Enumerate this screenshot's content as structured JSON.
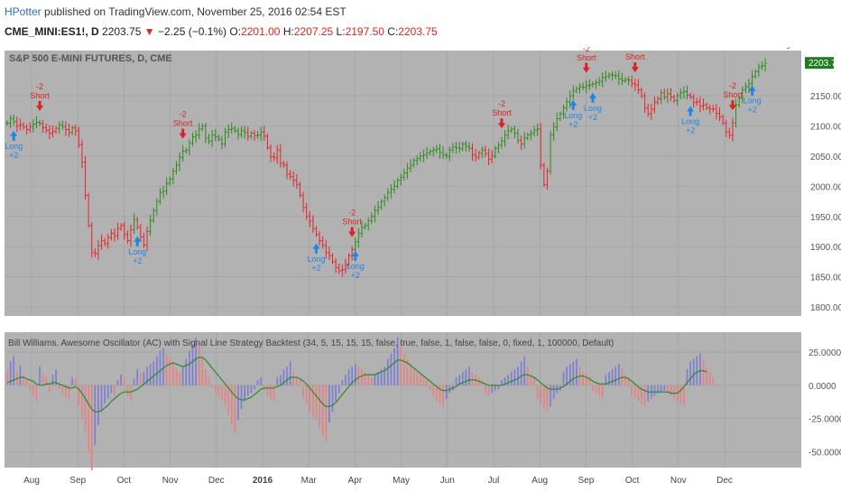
{
  "header": {
    "user": "HPotter",
    "published_text": " published on TradingView.com, November 25, 2016 02:54 EST",
    "symbol": "CME_MINI:ES1!, D",
    "last": "2203.75",
    "down_arrow": "▼",
    "change": "−2.25 (−0.1%)",
    "o_label": "O:",
    "o_value": "2201.00",
    "h_label": "H:",
    "h_value": "2207.25",
    "l_label": "L:",
    "l_value": "2197.50",
    "c_label": "C:",
    "c_value": "2203.75"
  },
  "main_pane": {
    "title": "S&P 500 E-MINI FUTURES, D, CME",
    "price_badge": "2203.75"
  },
  "indicator_pane": {
    "title": "Bill Williams. Awesome Oscillator (AC) with Signal Line Strategy Backtest (34, 5, 15, 15, 15, false, true, false, 1, false, false, 0, fixed, 1, 100000, Default)"
  },
  "colors": {
    "background": "#b2b2b2",
    "grid": "#a3a3a3",
    "bull": "#2b8a1a",
    "bear": "#e8222a",
    "long": "#1f86e8",
    "short": "#e02020",
    "hist_pos": "#e88080",
    "hist_neg": "#7b7bd8",
    "signal": "#2a8a2a",
    "badge": "#227a22"
  },
  "chart_data": [
    {
      "type": "candlestick",
      "title": "S&P 500 E-MINI FUTURES, D, CME",
      "x_tick_labels": [
        "Aug",
        "Sep",
        "Oct",
        "Nov",
        "Dec",
        "2016",
        "Mar",
        "Apr",
        "May",
        "Jun",
        "Jul",
        "Aug",
        "Sep",
        "Oct",
        "Nov",
        "Dec"
      ],
      "y_tick_labels": [
        "2150.00",
        "2100.00",
        "2050.00",
        "2000.00",
        "1950.00",
        "1900.00",
        "1850.00",
        "1800.00"
      ],
      "ylim": [
        1785,
        2225
      ],
      "last_price": 2203.75,
      "grid": true,
      "closes": [
        2105,
        2112,
        2107,
        2100,
        2102,
        2098,
        2094,
        2099,
        2103,
        2106,
        2104,
        2097,
        2093,
        2088,
        2091,
        2096,
        2102,
        2099,
        2094,
        2089,
        2097,
        2092,
        2069,
        2040,
        1985,
        1935,
        1890,
        1888,
        1902,
        1910,
        1905,
        1915,
        1922,
        1918,
        1930,
        1935,
        1920,
        1910,
        1928,
        1945,
        1932,
        1916,
        1903,
        1925,
        1943,
        1960,
        1975,
        1990,
        1992,
        2005,
        2012,
        2025,
        2035,
        2048,
        2058,
        2060,
        2072,
        2082,
        2085,
        2095,
        2100,
        2080,
        2075,
        2085,
        2082,
        2078,
        2070,
        2090,
        2094,
        2096,
        2092,
        2086,
        2092,
        2089,
        2083,
        2088,
        2084,
        2085,
        2090,
        2083,
        2064,
        2049,
        2047,
        2060,
        2038,
        2035,
        2020,
        2016,
        2010,
        2003,
        1985,
        1965,
        1950,
        1942,
        1930,
        1920,
        1910,
        1902,
        1890,
        1885,
        1875,
        1865,
        1860,
        1862,
        1870,
        1885,
        1895,
        1908,
        1922,
        1932,
        1935,
        1943,
        1950,
        1960,
        1965,
        1975,
        1981,
        1990,
        1995,
        2000,
        2010,
        2015,
        2022,
        2030,
        2035,
        2043,
        2046,
        2050,
        2052,
        2055,
        2058,
        2060,
        2062,
        2056,
        2052,
        2050,
        2060,
        2065,
        2064,
        2062,
        2070,
        2066,
        2063,
        2052,
        2048,
        2055,
        2060,
        2054,
        2045,
        2050,
        2063,
        2068,
        2075,
        2085,
        2092,
        2095,
        2088,
        2076,
        2070,
        2080,
        2085,
        2088,
        2093,
        2095,
        2035,
        2003,
        2025,
        2085,
        2098,
        2112,
        2120,
        2130,
        2140,
        2150,
        2158,
        2162,
        2165,
        2164,
        2167,
        2168,
        2170,
        2172,
        2174,
        2180,
        2182,
        2185,
        2184,
        2183,
        2178,
        2175,
        2177,
        2176,
        2170,
        2168,
        2160,
        2150,
        2130,
        2120,
        2128,
        2139,
        2145,
        2155,
        2148,
        2153,
        2148,
        2142,
        2150,
        2155,
        2157,
        2151,
        2148,
        2139,
        2140,
        2133,
        2135,
        2130,
        2128,
        2128,
        2121,
        2115,
        2105,
        2090,
        2085,
        2105,
        2135,
        2146,
        2160,
        2165,
        2170,
        2182,
        2190,
        2198,
        2200,
        2203.75
      ],
      "signals": [
        {
          "label": "Long",
          "qty": "+2",
          "side": "long"
        },
        {
          "label": "Short",
          "qty": "-2",
          "side": "short"
        },
        {
          "label": "Long",
          "qty": "+2",
          "side": "long"
        },
        {
          "label": "Short",
          "qty": "-2",
          "side": "short"
        },
        {
          "label": "Long",
          "qty": "+2",
          "side": "long"
        },
        {
          "label": "Short",
          "qty": "-2",
          "side": "short"
        },
        {
          "label": "Long",
          "qty": "+2",
          "side": "long"
        },
        {
          "label": "Short",
          "qty": "-2",
          "side": "short"
        },
        {
          "label": "Long",
          "qty": "+2",
          "side": "long"
        },
        {
          "label": "Short",
          "qty": "-2",
          "side": "short"
        },
        {
          "label": "Long",
          "qty": "+2",
          "side": "long"
        },
        {
          "label": "Short",
          "qty": "",
          "side": "short"
        },
        {
          "label": "Long",
          "qty": "+2",
          "side": "long"
        },
        {
          "label": "Short",
          "qty": "-2",
          "side": "short"
        },
        {
          "label": "Long",
          "qty": "+2",
          "side": "long"
        },
        {
          "label": "Short",
          "qty": "-2",
          "side": "short"
        },
        {
          "label": "Long",
          "qty": "+2",
          "side": "long"
        }
      ]
    },
    {
      "type": "bar",
      "title": "Bill Williams. Awesome Oscillator (AC) with Signal Line Strategy Backtest",
      "y_tick_labels": [
        "25.0000",
        "0.0000",
        "-25.0000",
        "-50.0000"
      ],
      "ylim": [
        -62,
        40
      ],
      "series": [
        {
          "kind": "histogram",
          "values": [
            12,
            18,
            22,
            10,
            15,
            8,
            5,
            -4,
            -8,
            -12,
            14,
            9,
            6,
            -5,
            8,
            12,
            -3,
            -6,
            -9,
            -10,
            6,
            5,
            -15,
            -25,
            -35,
            -50,
            -64,
            -45,
            -30,
            -20,
            -14,
            -10,
            -6,
            -8,
            4,
            8,
            6,
            -8,
            -12,
            5,
            12,
            9,
            10,
            14,
            16,
            18,
            22,
            26,
            28,
            24,
            20,
            16,
            12,
            10,
            14,
            20,
            26,
            30,
            36,
            32,
            20,
            12,
            6,
            -2,
            -6,
            -8,
            -12,
            -16,
            -22,
            -30,
            -36,
            -26,
            -18,
            -12,
            -8,
            -6,
            -3,
            4,
            6,
            -4,
            -8,
            -10,
            -12,
            6,
            8,
            12,
            14,
            18,
            10,
            6,
            4,
            -10,
            -14,
            -20,
            -24,
            -26,
            -32,
            -38,
            -42,
            -28,
            -20,
            -12,
            -6,
            4,
            8,
            12,
            14,
            16,
            14,
            12,
            10,
            8,
            6,
            8,
            10,
            12,
            14,
            20,
            24,
            28,
            36,
            32,
            24,
            20,
            16,
            12,
            10,
            8,
            6,
            4,
            -4,
            -8,
            -12,
            -14,
            -16,
            -10,
            -6,
            -4,
            6,
            8,
            10,
            12,
            14,
            10,
            8,
            6,
            4,
            -6,
            -8,
            -6,
            -4,
            -3,
            4,
            6,
            8,
            10,
            12,
            14,
            18,
            22,
            14,
            8,
            6,
            -10,
            -14,
            -18,
            -20,
            -16,
            -10,
            -6,
            -4,
            10,
            14,
            16,
            18,
            20,
            14,
            10,
            8,
            6,
            -4,
            -6,
            -8,
            -10,
            8,
            10,
            12,
            14,
            16,
            12,
            8,
            6,
            -8,
            -10,
            -12,
            -14,
            -16,
            -12,
            -10,
            -8,
            -6,
            -6,
            -4,
            -5,
            -8,
            -10,
            -12,
            -14,
            -16,
            12,
            18,
            20,
            22,
            24,
            20,
            14,
            10,
            6
          ]
        },
        {
          "kind": "signal",
          "name": "",
          "values": [
            2,
            3,
            4,
            5,
            6,
            6,
            5,
            4,
            3,
            1,
            0,
            0,
            1,
            1,
            2,
            2,
            1,
            0,
            -1,
            -2,
            -2,
            -1,
            -3,
            -6,
            -10,
            -14,
            -18,
            -20,
            -20,
            -19,
            -17,
            -15,
            -12,
            -10,
            -8,
            -6,
            -5,
            -5,
            -5,
            -4,
            -3,
            -1,
            1,
            3,
            5,
            7,
            9,
            11,
            13,
            15,
            16,
            17,
            16,
            15,
            14,
            15,
            16,
            18,
            20,
            21,
            21,
            19,
            16,
            13,
            10,
            7,
            4,
            1,
            -2,
            -5,
            -8,
            -10,
            -11,
            -11,
            -10,
            -9,
            -7,
            -5,
            -3,
            -2,
            -2,
            -2,
            -2,
            -1,
            0,
            2,
            4,
            6,
            6,
            6,
            5,
            3,
            1,
            -2,
            -5,
            -8,
            -11,
            -14,
            -16,
            -16,
            -15,
            -13,
            -10,
            -7,
            -4,
            -1,
            2,
            4,
            6,
            7,
            8,
            8,
            8,
            8,
            9,
            10,
            11,
            13,
            15,
            17,
            19,
            19,
            18,
            17,
            15,
            13,
            11,
            9,
            7,
            5,
            3,
            1,
            -1,
            -3,
            -4,
            -4,
            -3,
            -2,
            -1,
            1,
            2,
            3,
            4,
            4,
            4,
            3,
            2,
            1,
            0,
            0,
            0,
            0,
            0,
            1,
            2,
            3,
            4,
            5,
            7,
            8,
            8,
            7,
            6,
            4,
            2,
            0,
            -2,
            -3,
            -3,
            -3,
            -2,
            -1,
            1,
            3,
            5,
            6,
            7,
            7,
            6,
            5,
            3,
            2,
            1,
            1,
            1,
            2,
            3,
            4,
            5,
            6,
            6,
            5,
            3,
            1,
            -1,
            -3,
            -4,
            -5,
            -5,
            -5,
            -5,
            -5,
            -5,
            -5,
            -6,
            -6,
            -6,
            -4,
            -1,
            2,
            5,
            8,
            10,
            11,
            11,
            10
          ]
        }
      ]
    }
  ]
}
